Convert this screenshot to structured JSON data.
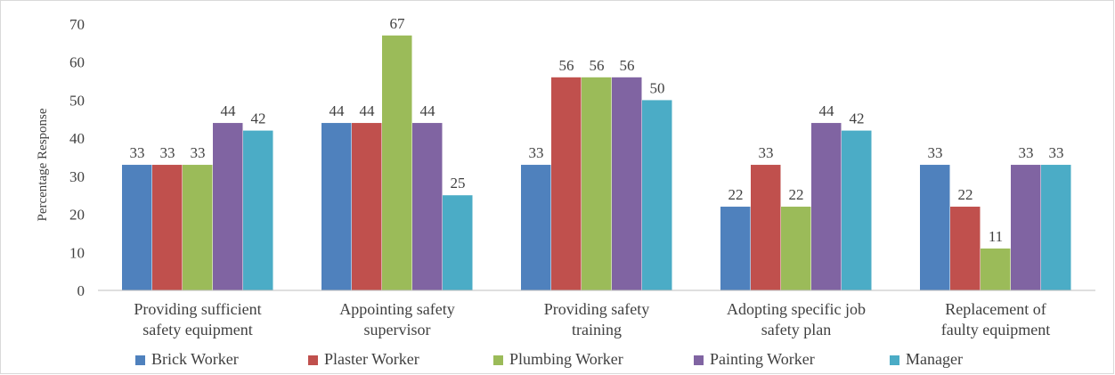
{
  "chart_data": {
    "type": "bar",
    "title": "",
    "xlabel": "",
    "ylabel": "Percentage Response",
    "ylim": [
      0,
      70
    ],
    "yticks": [
      0,
      10,
      20,
      30,
      40,
      50,
      60,
      70
    ],
    "grid": false,
    "legend_position": "bottom",
    "categories": [
      [
        "Providing sufficient",
        "safety equipment"
      ],
      [
        "Appointing safety",
        "supervisor"
      ],
      [
        "Providing safety",
        "training"
      ],
      [
        "Adopting specific job",
        "safety plan"
      ],
      [
        "Replacement of",
        "faulty equipment"
      ]
    ],
    "series": [
      {
        "name": "Brick Worker",
        "color": "#4f81bd",
        "values": [
          33,
          44,
          33,
          22,
          33
        ]
      },
      {
        "name": "Plaster Worker",
        "color": "#c0504d",
        "values": [
          33,
          44,
          56,
          33,
          22
        ]
      },
      {
        "name": "Plumbing Worker",
        "color": "#9bbb59",
        "values": [
          33,
          67,
          56,
          22,
          11
        ]
      },
      {
        "name": "Painting Worker",
        "color": "#8064a2",
        "values": [
          44,
          44,
          56,
          44,
          33
        ]
      },
      {
        "name": "Manager",
        "color": "#4bacc6",
        "values": [
          42,
          25,
          50,
          42,
          33
        ]
      }
    ]
  }
}
